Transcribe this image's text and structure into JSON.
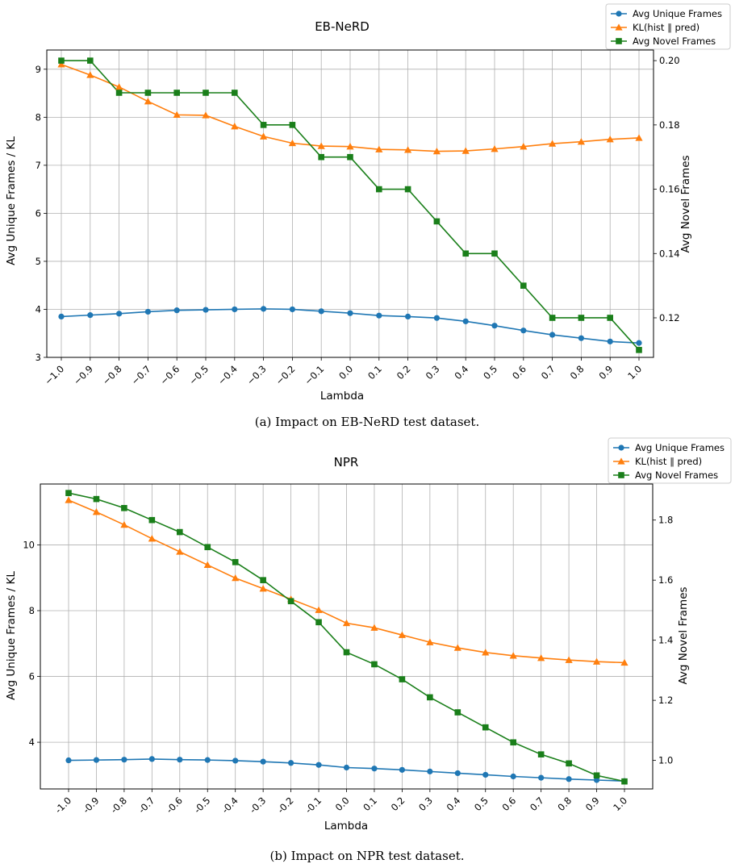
{
  "figure": {
    "captions": [
      "(a) Impact on EB-NeRD test dataset.",
      "(b) Impact on NPR test dataset."
    ]
  },
  "colors": {
    "avg_unique": "#1f77b4",
    "kl": "#ff7f0e",
    "avg_novel": "#1a7f1a",
    "grid": "#b0b0b0"
  },
  "legend_placement": "outside top-right",
  "chart_data": [
    {
      "type": "line",
      "title": "EB-NeRD",
      "xlabel": "Lambda",
      "ylabel_left": "Avg Unique Frames / KL",
      "ylabel_right": "Avg Novel Frames",
      "grid": true,
      "x": [
        -1.0,
        -0.9,
        -0.8,
        -0.7,
        -0.6,
        -0.5,
        -0.4,
        -0.3,
        -0.2,
        -0.1,
        0.0,
        0.1,
        0.2,
        0.3,
        0.4,
        0.5,
        0.6,
        0.7,
        0.8,
        0.9,
        1.0
      ],
      "x_tick_labels": [
        "−1.0",
        "−0.9",
        "−0.8",
        "−0.7",
        "−0.6",
        "−0.5",
        "−0.4",
        "−0.3",
        "−0.2",
        "−0.1",
        "0.0",
        "0.1",
        "0.2",
        "0.3",
        "0.4",
        "0.5",
        "0.6",
        "0.7",
        "0.8",
        "0.9",
        "1.0"
      ],
      "ylim_left": [
        3,
        9.4
      ],
      "yticks_left": [
        3,
        4,
        5,
        6,
        7,
        8,
        9
      ],
      "ylim_right": [
        0.1077,
        0.2033
      ],
      "yticks_right": [
        0.12,
        0.14,
        0.16,
        0.18,
        0.2
      ],
      "series": [
        {
          "name": "Avg Unique Frames",
          "axis": "left",
          "marker": "circle",
          "color_key": "avg_unique",
          "values": [
            3.85,
            3.88,
            3.91,
            3.95,
            3.98,
            3.99,
            4.0,
            4.01,
            4.0,
            3.96,
            3.92,
            3.87,
            3.85,
            3.82,
            3.75,
            3.66,
            3.56,
            3.47,
            3.4,
            3.33,
            3.3
          ]
        },
        {
          "name": "KL(hist ∥ pred)",
          "axis": "left",
          "marker": "triangle",
          "color_key": "kl",
          "values": [
            9.1,
            8.88,
            8.63,
            8.33,
            8.05,
            8.04,
            7.81,
            7.6,
            7.46,
            7.4,
            7.39,
            7.33,
            7.32,
            7.29,
            7.3,
            7.34,
            7.39,
            7.45,
            7.49,
            7.54,
            7.57
          ]
        },
        {
          "name": "Avg Novel Frames",
          "axis": "right",
          "marker": "square",
          "color_key": "avg_novel",
          "values": [
            0.2,
            0.2,
            0.19,
            0.19,
            0.19,
            0.19,
            0.19,
            0.18,
            0.18,
            0.17,
            0.17,
            0.16,
            0.16,
            0.15,
            0.14,
            0.14,
            0.13,
            0.12,
            0.12,
            0.12,
            0.11
          ]
        }
      ]
    },
    {
      "type": "line",
      "title": "NPR",
      "xlabel": "Lambda",
      "ylabel_left": "Avg Unique Frames / KL",
      "ylabel_right": "Avg Novel Frames",
      "grid": true,
      "x": [
        -1.0,
        -0.9,
        -0.8,
        -0.7,
        -0.6,
        -0.5,
        -0.4,
        -0.3,
        -0.2,
        -0.1,
        0.0,
        0.1,
        0.2,
        0.3,
        0.4,
        0.5,
        0.6,
        0.7,
        0.8,
        0.9,
        1.0
      ],
      "x_tick_labels": [
        "-1.0",
        "-0.9",
        "-0.8",
        "-0.7",
        "-0.6",
        "-0.5",
        "-0.4",
        "-0.3",
        "-0.2",
        "-0.1",
        "0.0",
        "0.1",
        "0.2",
        "0.3",
        "0.4",
        "0.5",
        "0.6",
        "0.7",
        "0.8",
        "0.9",
        "1.0"
      ],
      "ylim_left": [
        2.58,
        11.85
      ],
      "yticks_left": [
        4,
        6,
        8,
        10
      ],
      "ylim_right": [
        0.905,
        1.92
      ],
      "yticks_right": [
        1.0,
        1.2,
        1.4,
        1.6,
        1.8
      ],
      "series": [
        {
          "name": "Avg Unique Frames",
          "axis": "left",
          "marker": "circle",
          "color_key": "avg_unique",
          "values": [
            3.45,
            3.46,
            3.47,
            3.49,
            3.47,
            3.46,
            3.44,
            3.41,
            3.37,
            3.31,
            3.23,
            3.2,
            3.16,
            3.11,
            3.06,
            3.01,
            2.96,
            2.92,
            2.88,
            2.85,
            2.82
          ]
        },
        {
          "name": "KL(hist ∥ pred)",
          "axis": "left",
          "marker": "triangle",
          "color_key": "kl",
          "values": [
            11.36,
            11.0,
            10.61,
            10.19,
            9.79,
            9.39,
            8.99,
            8.67,
            8.35,
            8.02,
            7.62,
            7.48,
            7.26,
            7.04,
            6.87,
            6.73,
            6.63,
            6.56,
            6.5,
            6.45,
            6.42
          ]
        },
        {
          "name": "Avg Novel Frames",
          "axis": "right",
          "marker": "square",
          "color_key": "avg_novel",
          "values": [
            1.89,
            1.87,
            1.84,
            1.8,
            1.76,
            1.71,
            1.66,
            1.6,
            1.53,
            1.46,
            1.36,
            1.32,
            1.27,
            1.21,
            1.16,
            1.11,
            1.06,
            1.02,
            0.99,
            0.95,
            0.93
          ]
        }
      ]
    }
  ]
}
